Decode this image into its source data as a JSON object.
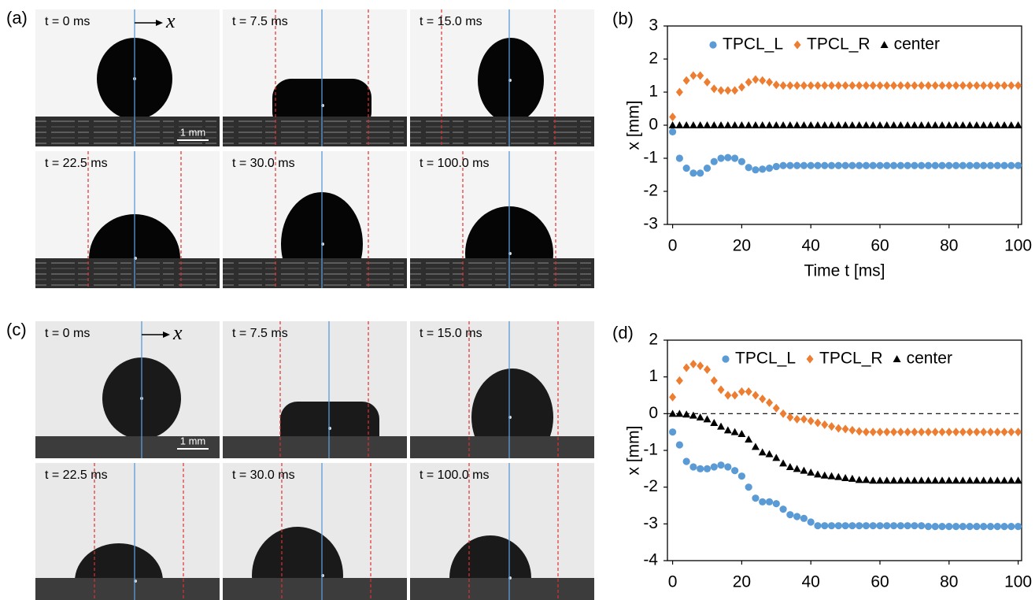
{
  "figure": {
    "panels": [
      {
        "label": "(a)",
        "frames": [
          "t = 0 ms",
          "t = 7.5 ms",
          "t = 15.0 ms",
          "t = 22.5 ms",
          "t = 30.0 ms",
          "t = 100.0 ms"
        ],
        "axis_symbol": "x",
        "scale_bar": "1 mm"
      },
      {
        "label": "(c)",
        "frames": [
          "t = 0 ms",
          "t = 7.5 ms",
          "t = 15.0 ms",
          "t = 22.5 ms",
          "t = 30.0 ms",
          "t = 100.0 ms"
        ],
        "axis_symbol": "x",
        "scale_bar": "1 mm"
      }
    ]
  },
  "chart_data": [
    {
      "type": "scatter",
      "panel_label": "(b)",
      "xlabel": "Time t [ms]",
      "ylabel": "x [mm]",
      "xlim": [
        -1.5,
        101
      ],
      "ylim": [
        -3,
        3
      ],
      "xticks": [
        0,
        20,
        40,
        60,
        80,
        100
      ],
      "yticks": [
        -3,
        -2,
        -1,
        0,
        1,
        2,
        3
      ],
      "legend": "top",
      "x": [
        0,
        2,
        4,
        6,
        8,
        10,
        12,
        14,
        16,
        18,
        20,
        22,
        24,
        26,
        28,
        30,
        32,
        34,
        36,
        38,
        40,
        42,
        44,
        46,
        48,
        50,
        52,
        54,
        56,
        58,
        60,
        62,
        64,
        66,
        68,
        70,
        72,
        74,
        76,
        78,
        80,
        82,
        84,
        86,
        88,
        90,
        92,
        94,
        96,
        98,
        100
      ],
      "series": [
        {
          "name": "TPCL_L",
          "color": "#5b9bd5",
          "marker": "circle",
          "values": [
            -0.2,
            -1.0,
            -1.3,
            -1.45,
            -1.45,
            -1.3,
            -1.1,
            -1.0,
            -0.98,
            -1.0,
            -1.1,
            -1.28,
            -1.35,
            -1.33,
            -1.3,
            -1.25,
            -1.22,
            -1.22,
            -1.22,
            -1.22,
            -1.22,
            -1.22,
            -1.22,
            -1.22,
            -1.22,
            -1.22,
            -1.22,
            -1.22,
            -1.22,
            -1.22,
            -1.22,
            -1.22,
            -1.22,
            -1.22,
            -1.22,
            -1.22,
            -1.22,
            -1.22,
            -1.22,
            -1.22,
            -1.22,
            -1.22,
            -1.22,
            -1.22,
            -1.22,
            -1.22,
            -1.22,
            -1.22,
            -1.22,
            -1.22,
            -1.22
          ]
        },
        {
          "name": "TPCL_R",
          "color": "#ed7d31",
          "marker": "diamond",
          "values": [
            0.25,
            1.0,
            1.35,
            1.5,
            1.5,
            1.3,
            1.1,
            1.05,
            1.05,
            1.05,
            1.15,
            1.3,
            1.38,
            1.35,
            1.3,
            1.22,
            1.2,
            1.2,
            1.2,
            1.2,
            1.2,
            1.2,
            1.2,
            1.2,
            1.2,
            1.2,
            1.2,
            1.2,
            1.2,
            1.2,
            1.2,
            1.2,
            1.2,
            1.2,
            1.2,
            1.2,
            1.2,
            1.2,
            1.2,
            1.2,
            1.2,
            1.2,
            1.2,
            1.2,
            1.2,
            1.2,
            1.2,
            1.2,
            1.2,
            1.2,
            1.2
          ]
        },
        {
          "name": "center",
          "color": "#000000",
          "marker": "triangle",
          "values": [
            0,
            0,
            0,
            0,
            0,
            0,
            0,
            0,
            0,
            0,
            0,
            0,
            0,
            0,
            0,
            0,
            0,
            0,
            0,
            0,
            0,
            0,
            0,
            0,
            0,
            0,
            0,
            0,
            0,
            0,
            0,
            0,
            0,
            0,
            0,
            0,
            0,
            0,
            0,
            0,
            0,
            0,
            0,
            0,
            0,
            0,
            0,
            0,
            0,
            0,
            0
          ]
        }
      ]
    },
    {
      "type": "scatter",
      "panel_label": "(d)",
      "xlabel": "Time t [ms]",
      "ylabel": "x [mm]",
      "xlim": [
        -1.5,
        101
      ],
      "ylim": [
        -4,
        2
      ],
      "xticks": [
        0,
        20,
        40,
        60,
        80,
        100
      ],
      "yticks": [
        -4,
        -3,
        -2,
        -1,
        0,
        1,
        2
      ],
      "legend": "top",
      "hline": 0,
      "x": [
        0,
        2,
        4,
        6,
        8,
        10,
        12,
        14,
        16,
        18,
        20,
        22,
        24,
        26,
        28,
        30,
        32,
        34,
        36,
        38,
        40,
        42,
        44,
        46,
        48,
        50,
        52,
        54,
        56,
        58,
        60,
        62,
        64,
        66,
        68,
        70,
        72,
        74,
        76,
        78,
        80,
        82,
        84,
        86,
        88,
        90,
        92,
        94,
        96,
        98,
        100
      ],
      "series": [
        {
          "name": "TPCL_L",
          "color": "#5b9bd5",
          "marker": "circle",
          "values": [
            -0.5,
            -0.85,
            -1.3,
            -1.45,
            -1.5,
            -1.5,
            -1.45,
            -1.4,
            -1.45,
            -1.55,
            -1.7,
            -2.0,
            -2.3,
            -2.4,
            -2.4,
            -2.45,
            -2.6,
            -2.75,
            -2.8,
            -2.85,
            -2.95,
            -3.05,
            -3.05,
            -3.05,
            -3.05,
            -3.05,
            -3.05,
            -3.05,
            -3.05,
            -3.05,
            -3.05,
            -3.05,
            -3.05,
            -3.05,
            -3.05,
            -3.05,
            -3.05,
            -3.07,
            -3.07,
            -3.07,
            -3.07,
            -3.07,
            -3.07,
            -3.07,
            -3.07,
            -3.07,
            -3.07,
            -3.07,
            -3.07,
            -3.07,
            -3.07
          ]
        },
        {
          "name": "TPCL_R",
          "color": "#ed7d31",
          "marker": "diamond",
          "values": [
            0.45,
            0.9,
            1.25,
            1.35,
            1.3,
            1.2,
            0.9,
            0.65,
            0.5,
            0.5,
            0.6,
            0.6,
            0.5,
            0.4,
            0.3,
            0.15,
            0.0,
            -0.1,
            -0.15,
            -0.15,
            -0.2,
            -0.25,
            -0.3,
            -0.35,
            -0.4,
            -0.42,
            -0.45,
            -0.48,
            -0.5,
            -0.5,
            -0.5,
            -0.5,
            -0.5,
            -0.5,
            -0.5,
            -0.5,
            -0.5,
            -0.5,
            -0.5,
            -0.5,
            -0.5,
            -0.5,
            -0.5,
            -0.5,
            -0.5,
            -0.5,
            -0.5,
            -0.5,
            -0.5,
            -0.5,
            -0.5
          ]
        },
        {
          "name": "center",
          "color": "#000000",
          "marker": "triangle",
          "values": [
            0,
            0,
            -0.02,
            -0.05,
            -0.1,
            -0.15,
            -0.25,
            -0.35,
            -0.45,
            -0.5,
            -0.55,
            -0.7,
            -0.9,
            -1.05,
            -1.1,
            -1.2,
            -1.35,
            -1.45,
            -1.5,
            -1.55,
            -1.6,
            -1.65,
            -1.68,
            -1.7,
            -1.72,
            -1.75,
            -1.77,
            -1.8,
            -1.8,
            -1.82,
            -1.82,
            -1.82,
            -1.82,
            -1.82,
            -1.82,
            -1.82,
            -1.82,
            -1.82,
            -1.82,
            -1.82,
            -1.82,
            -1.82,
            -1.82,
            -1.82,
            -1.82,
            -1.82,
            -1.82,
            -1.82,
            -1.82,
            -1.82,
            -1.82
          ]
        }
      ]
    }
  ]
}
